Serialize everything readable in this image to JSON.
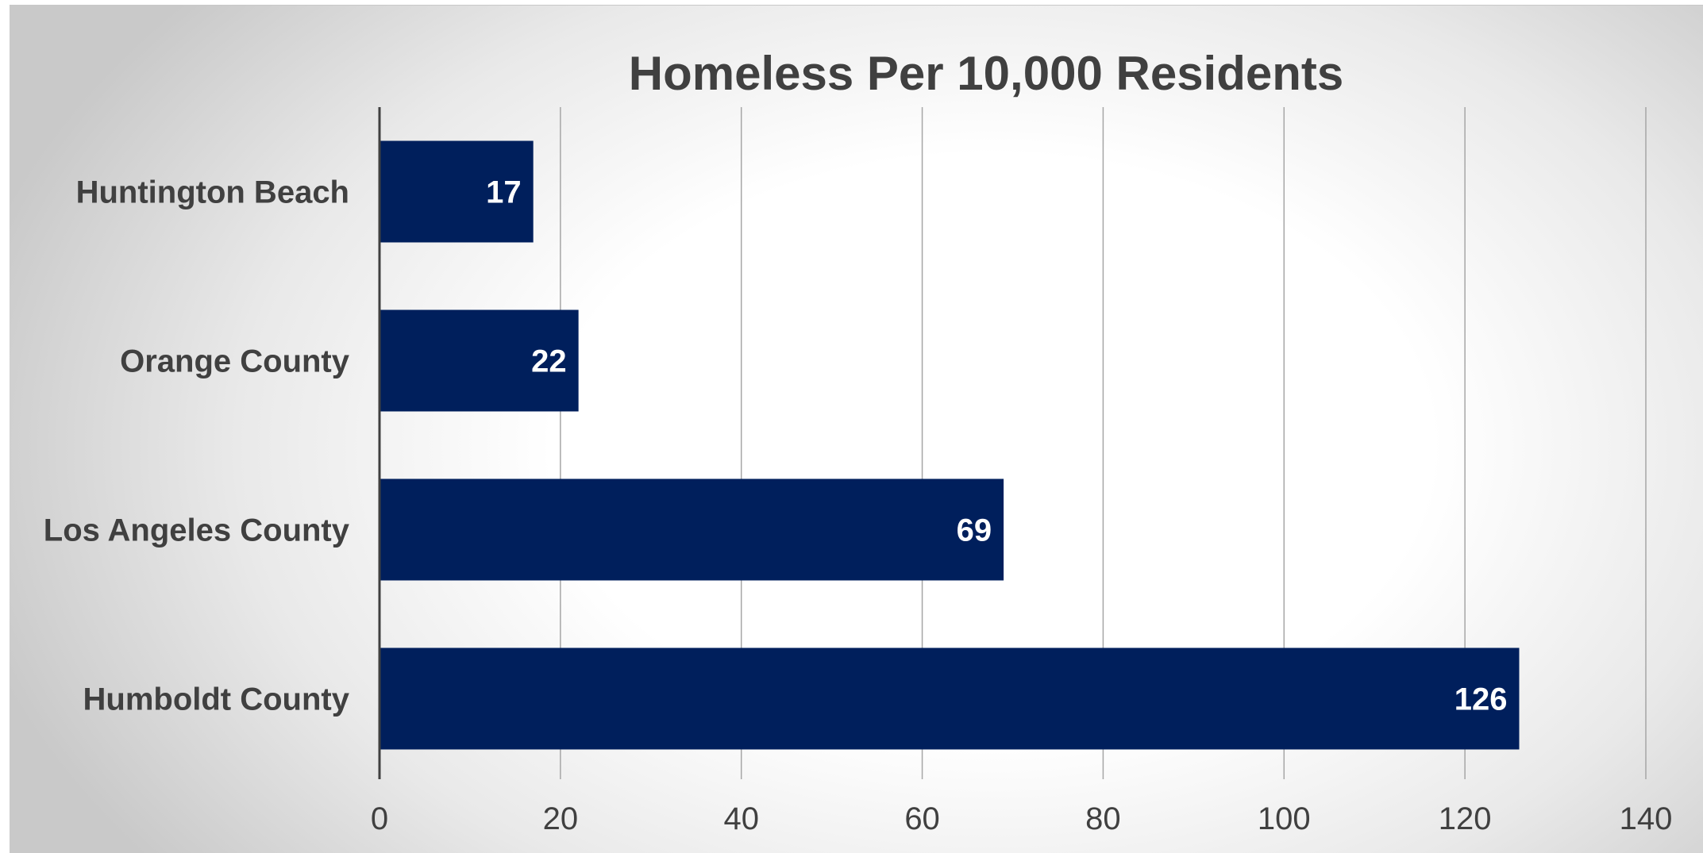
{
  "chart_data": {
    "type": "bar",
    "orientation": "horizontal",
    "title": "Homeless Per 10,000 Residents",
    "categories": [
      "Huntington Beach",
      "Orange County",
      "Los Angeles County",
      "Humboldt County"
    ],
    "values": [
      17,
      22,
      69,
      126
    ],
    "data_labels": [
      "17",
      "22",
      "69",
      "126"
    ],
    "xlim": [
      0,
      140
    ],
    "x_ticks": [
      0,
      20,
      40,
      60,
      80,
      100,
      120,
      140
    ],
    "xlabel": "",
    "ylabel": "",
    "grid": true,
    "legend": "none",
    "colors": {
      "bar": "#001f5c",
      "text": "#404040",
      "data_label": "#ffffff",
      "gridline": "#a6a6a6"
    }
  }
}
